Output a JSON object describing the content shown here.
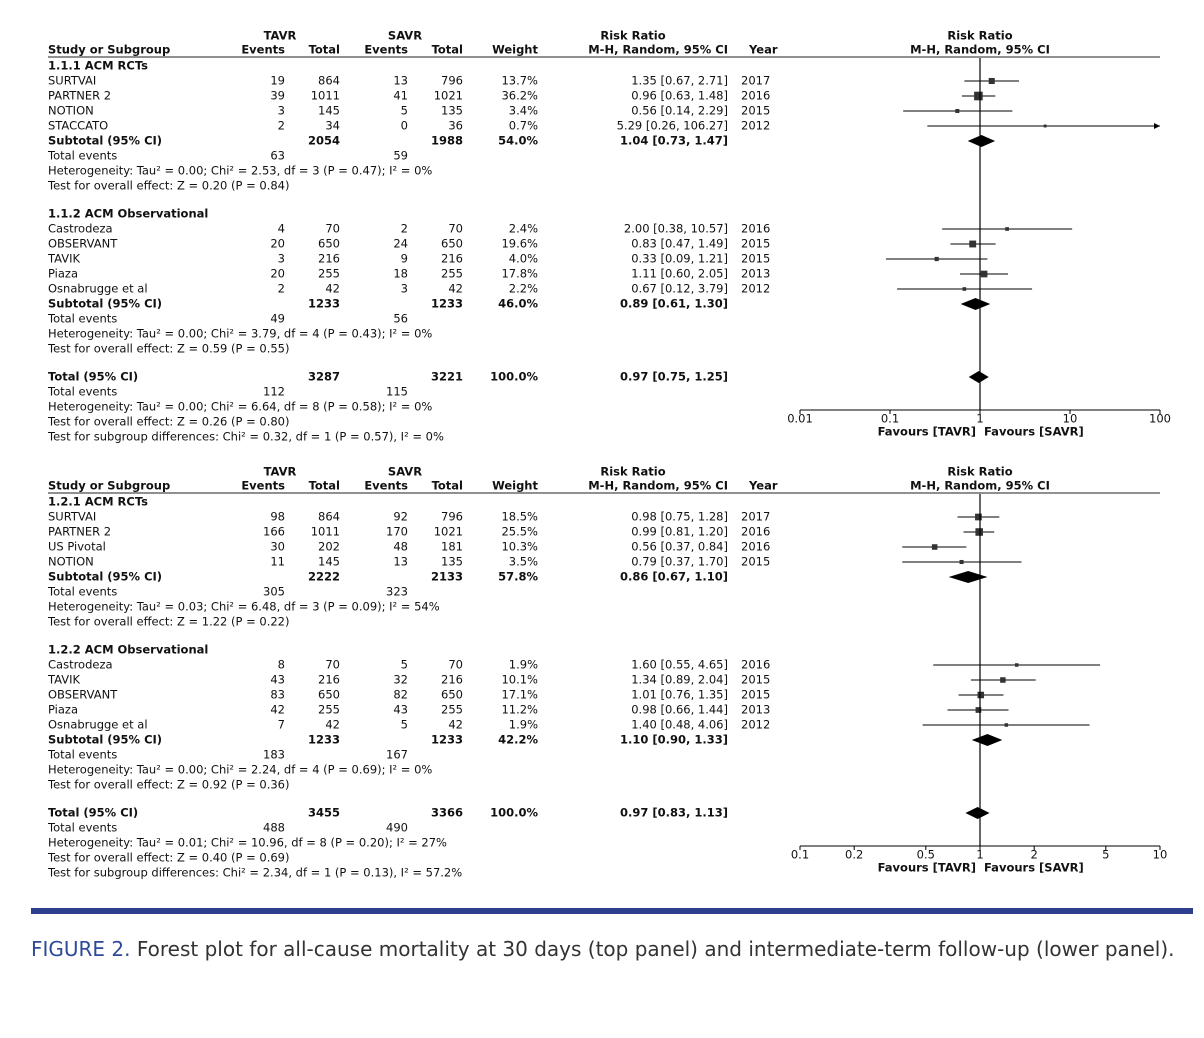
{
  "panels": [
    {
      "header": {
        "group1": "TAVR",
        "group2": "SAVR",
        "effect": "Risk Ratio",
        "study": "Study or Subgroup",
        "events1": "Events",
        "total1": "Total",
        "events2": "Events",
        "total2": "Total",
        "weight": "Weight",
        "method": "M-H, Random, 95% CI",
        "year": "Year",
        "plot_title": "Risk Ratio",
        "plot_method": "M-H, Random, 95% CI"
      },
      "subgroups": [
        {
          "title": "1.1.1 ACM RCTs",
          "studies": [
            {
              "name": "SURTVAI",
              "e1": 19,
              "n1": 864,
              "e2": 13,
              "n2": 796,
              "weight": 13.7,
              "weight_label": "13.7%",
              "rr": 1.35,
              "lo": 0.67,
              "hi": 2.71,
              "ci_label": "1.35 [0.67, 2.71]",
              "year": 2017
            },
            {
              "name": "PARTNER 2",
              "e1": 39,
              "n1": 1011,
              "e2": 41,
              "n2": 1021,
              "weight": 36.2,
              "weight_label": "36.2%",
              "rr": 0.96,
              "lo": 0.63,
              "hi": 1.48,
              "ci_label": "0.96 [0.63, 1.48]",
              "year": 2016
            },
            {
              "name": "NOTION",
              "e1": 3,
              "n1": 145,
              "e2": 5,
              "n2": 135,
              "weight": 3.4,
              "weight_label": "3.4%",
              "rr": 0.56,
              "lo": 0.14,
              "hi": 2.29,
              "ci_label": "0.56 [0.14, 2.29]",
              "year": 2015
            },
            {
              "name": "STACCATO",
              "e1": 2,
              "n1": 34,
              "e2": 0,
              "n2": 36,
              "weight": 0.7,
              "weight_label": "0.7%",
              "rr": 5.29,
              "lo": 0.26,
              "hi": 106.27,
              "ci_label": "5.29 [0.26, 106.27]",
              "year": 2012
            }
          ],
          "subtotal": {
            "label": "Subtotal (95% CI)",
            "n1": 2054,
            "n2": 1988,
            "weight": 54.0,
            "weight_label": "54.0%",
            "rr": 1.04,
            "lo": 0.73,
            "hi": 1.47,
            "ci_label": "1.04 [0.73, 1.47]"
          },
          "total_events": {
            "label": "Total events",
            "e1": 63,
            "e2": 59
          },
          "heterogeneity": "Heterogeneity: Tau² = 0.00; Chi² = 2.53, df = 3 (P = 0.47); I² = 0%",
          "overall_effect": "Test for overall effect: Z = 0.20 (P = 0.84)"
        },
        {
          "title": "1.1.2 ACM Observational",
          "studies": [
            {
              "name": "Castrodeza",
              "e1": 4,
              "n1": 70,
              "e2": 2,
              "n2": 70,
              "weight": 2.4,
              "weight_label": "2.4%",
              "rr": 2.0,
              "lo": 0.38,
              "hi": 10.57,
              "ci_label": "2.00 [0.38, 10.57]",
              "year": 2016
            },
            {
              "name": "OBSERVANT",
              "e1": 20,
              "n1": 650,
              "e2": 24,
              "n2": 650,
              "weight": 19.6,
              "weight_label": "19.6%",
              "rr": 0.83,
              "lo": 0.47,
              "hi": 1.49,
              "ci_label": "0.83 [0.47, 1.49]",
              "year": 2015
            },
            {
              "name": "TAVIK",
              "e1": 3,
              "n1": 216,
              "e2": 9,
              "n2": 216,
              "weight": 4.0,
              "weight_label": "4.0%",
              "rr": 0.33,
              "lo": 0.09,
              "hi": 1.21,
              "ci_label": "0.33 [0.09, 1.21]",
              "year": 2015
            },
            {
              "name": "Piaza",
              "e1": 20,
              "n1": 255,
              "e2": 18,
              "n2": 255,
              "weight": 17.8,
              "weight_label": "17.8%",
              "rr": 1.11,
              "lo": 0.6,
              "hi": 2.05,
              "ci_label": "1.11 [0.60, 2.05]",
              "year": 2013
            },
            {
              "name": "Osnabrugge et al",
              "e1": 2,
              "n1": 42,
              "e2": 3,
              "n2": 42,
              "weight": 2.2,
              "weight_label": "2.2%",
              "rr": 0.67,
              "lo": 0.12,
              "hi": 3.79,
              "ci_label": "0.67 [0.12, 3.79]",
              "year": 2012
            }
          ],
          "subtotal": {
            "label": "Subtotal (95% CI)",
            "n1": 1233,
            "n2": 1233,
            "weight": 46.0,
            "weight_label": "46.0%",
            "rr": 0.89,
            "lo": 0.61,
            "hi": 1.3,
            "ci_label": "0.89 [0.61, 1.30]"
          },
          "total_events": {
            "label": "Total events",
            "e1": 49,
            "e2": 56
          },
          "heterogeneity": "Heterogeneity: Tau² = 0.00; Chi² = 3.79, df = 4 (P = 0.43); I² = 0%",
          "overall_effect": "Test for overall effect: Z = 0.59 (P = 0.55)"
        }
      ],
      "total": {
        "label": "Total (95% CI)",
        "n1": 3287,
        "n2": 3221,
        "weight": 100.0,
        "weight_label": "100.0%",
        "rr": 0.97,
        "lo": 0.75,
        "hi": 1.25,
        "ci_label": "0.97 [0.75, 1.25]"
      },
      "total_events": {
        "label": "Total events",
        "e1": 112,
        "e2": 115
      },
      "heterogeneity": "Heterogeneity: Tau² = 0.00; Chi² = 6.64, df = 8 (P = 0.58); I² = 0%",
      "overall_effect": "Test for overall effect: Z = 0.26 (P = 0.80)",
      "subgroup_differences": "Test for subgroup differences: Chi² = 0.32, df = 1 (P = 0.57), I² = 0%",
      "axis": {
        "log": true,
        "xlim": [
          0.01,
          100
        ],
        "xticks": [
          0.01,
          0.1,
          1,
          10,
          100
        ],
        "favours_left": "Favours [TAVR]",
        "favours_right": "Favours [SAVR]"
      }
    },
    {
      "header": {
        "group1": "TAVR",
        "group2": "SAVR",
        "effect": "Risk Ratio",
        "study": "Study or Subgroup",
        "events1": "Events",
        "total1": "Total",
        "events2": "Events",
        "total2": "Total",
        "weight": "Weight",
        "method": "M-H, Random, 95% CI",
        "year": "Year",
        "plot_title": "Risk Ratio",
        "plot_method": "M-H, Random, 95% CI"
      },
      "subgroups": [
        {
          "title": "1.2.1 ACM RCTs",
          "studies": [
            {
              "name": "SURTVAI",
              "e1": 98,
              "n1": 864,
              "e2": 92,
              "n2": 796,
              "weight": 18.5,
              "weight_label": "18.5%",
              "rr": 0.98,
              "lo": 0.75,
              "hi": 1.28,
              "ci_label": "0.98 [0.75, 1.28]",
              "year": 2017
            },
            {
              "name": "PARTNER 2",
              "e1": 166,
              "n1": 1011,
              "e2": 170,
              "n2": 1021,
              "weight": 25.5,
              "weight_label": "25.5%",
              "rr": 0.99,
              "lo": 0.81,
              "hi": 1.2,
              "ci_label": "0.99 [0.81, 1.20]",
              "year": 2016
            },
            {
              "name": "US Pivotal",
              "e1": 30,
              "n1": 202,
              "e2": 48,
              "n2": 181,
              "weight": 10.3,
              "weight_label": "10.3%",
              "rr": 0.56,
              "lo": 0.37,
              "hi": 0.84,
              "ci_label": "0.56 [0.37, 0.84]",
              "year": 2016
            },
            {
              "name": "NOTION",
              "e1": 11,
              "n1": 145,
              "e2": 13,
              "n2": 135,
              "weight": 3.5,
              "weight_label": "3.5%",
              "rr": 0.79,
              "lo": 0.37,
              "hi": 1.7,
              "ci_label": "0.79 [0.37, 1.70]",
              "year": 2015
            }
          ],
          "subtotal": {
            "label": "Subtotal (95% CI)",
            "n1": 2222,
            "n2": 2133,
            "weight": 57.8,
            "weight_label": "57.8%",
            "rr": 0.86,
            "lo": 0.67,
            "hi": 1.1,
            "ci_label": "0.86 [0.67, 1.10]"
          },
          "total_events": {
            "label": "Total events",
            "e1": 305,
            "e2": 323
          },
          "heterogeneity": "Heterogeneity: Tau² = 0.03; Chi² = 6.48, df = 3 (P = 0.09); I² = 54%",
          "overall_effect": "Test for overall effect: Z = 1.22 (P = 0.22)"
        },
        {
          "title": "1.2.2 ACM Observational",
          "studies": [
            {
              "name": "Castrodeza",
              "e1": 8,
              "n1": 70,
              "e2": 5,
              "n2": 70,
              "weight": 1.9,
              "weight_label": "1.9%",
              "rr": 1.6,
              "lo": 0.55,
              "hi": 4.65,
              "ci_label": "1.60 [0.55, 4.65]",
              "year": 2016
            },
            {
              "name": "TAVIK",
              "e1": 43,
              "n1": 216,
              "e2": 32,
              "n2": 216,
              "weight": 10.1,
              "weight_label": "10.1%",
              "rr": 1.34,
              "lo": 0.89,
              "hi": 2.04,
              "ci_label": "1.34 [0.89, 2.04]",
              "year": 2015
            },
            {
              "name": "OBSERVANT",
              "e1": 83,
              "n1": 650,
              "e2": 82,
              "n2": 650,
              "weight": 17.1,
              "weight_label": "17.1%",
              "rr": 1.01,
              "lo": 0.76,
              "hi": 1.35,
              "ci_label": "1.01 [0.76, 1.35]",
              "year": 2015
            },
            {
              "name": "Piaza",
              "e1": 42,
              "n1": 255,
              "e2": 43,
              "n2": 255,
              "weight": 11.2,
              "weight_label": "11.2%",
              "rr": 0.98,
              "lo": 0.66,
              "hi": 1.44,
              "ci_label": "0.98 [0.66, 1.44]",
              "year": 2013
            },
            {
              "name": "Osnabrugge et al",
              "e1": 7,
              "n1": 42,
              "e2": 5,
              "n2": 42,
              "weight": 1.9,
              "weight_label": "1.9%",
              "rr": 1.4,
              "lo": 0.48,
              "hi": 4.06,
              "ci_label": "1.40 [0.48, 4.06]",
              "year": 2012
            }
          ],
          "subtotal": {
            "label": "Subtotal (95% CI)",
            "n1": 1233,
            "n2": 1233,
            "weight": 42.2,
            "weight_label": "42.2%",
            "rr": 1.1,
            "lo": 0.9,
            "hi": 1.33,
            "ci_label": "1.10 [0.90, 1.33]"
          },
          "total_events": {
            "label": "Total events",
            "e1": 183,
            "e2": 167
          },
          "heterogeneity": "Heterogeneity: Tau² = 0.00; Chi² = 2.24, df = 4 (P = 0.69); I² = 0%",
          "overall_effect": "Test for overall effect: Z = 0.92 (P = 0.36)"
        }
      ],
      "total": {
        "label": "Total (95% CI)",
        "n1": 3455,
        "n2": 3366,
        "weight": 100.0,
        "weight_label": "100.0%",
        "rr": 0.97,
        "lo": 0.83,
        "hi": 1.13,
        "ci_label": "0.97 [0.83, 1.13]"
      },
      "total_events": {
        "label": "Total events",
        "e1": 488,
        "e2": 490
      },
      "heterogeneity": "Heterogeneity: Tau² = 0.01; Chi² = 10.96, df = 8 (P = 0.20); I² = 27%",
      "overall_effect": "Test for overall effect: Z = 0.40 (P = 0.69)",
      "subgroup_differences": "Test for subgroup differences: Chi² = 2.34, df = 1 (P = 0.13), I² = 57.2%",
      "axis": {
        "log": true,
        "xlim": [
          0.1,
          10
        ],
        "xticks": [
          0.1,
          0.2,
          0.5,
          1,
          2,
          5,
          10
        ],
        "favours_left": "Favours [TAVR]",
        "favours_right": "Favours [SAVR]"
      }
    }
  ],
  "caption": {
    "label": "FIGURE 2.",
    "text": "Forest plot for all-cause mortality at 30 days (top panel) and intermediate-term follow-up (lower panel)."
  }
}
